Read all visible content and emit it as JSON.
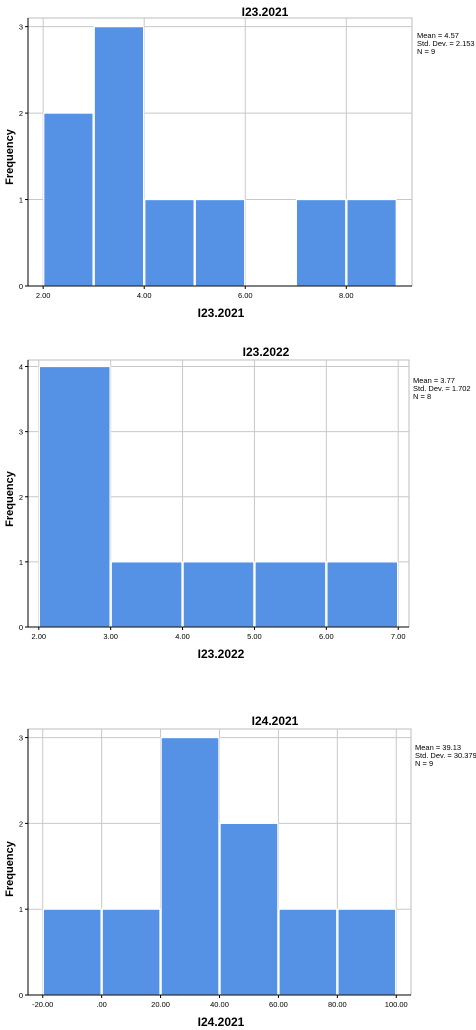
{
  "chart_data": [
    {
      "type": "bar",
      "title": "I23.2021",
      "xlabel": "I23.2021",
      "ylabel": "Frequency",
      "bins": [
        [
          2,
          3
        ],
        [
          3,
          4
        ],
        [
          4,
          5
        ],
        [
          5,
          6
        ],
        [
          6,
          7
        ],
        [
          7,
          8
        ],
        [
          8,
          9
        ]
      ],
      "values": [
        2,
        3,
        1,
        1,
        0,
        1,
        1
      ],
      "xlim": [
        1.7,
        9.3
      ],
      "ylim": [
        0,
        3.1
      ],
      "xticks": [
        {
          "value": 2,
          "label": "2.00"
        },
        {
          "value": 4,
          "label": "4.00"
        },
        {
          "value": 6,
          "label": "6.00"
        },
        {
          "value": 8,
          "label": "8.00"
        }
      ],
      "yticks": [
        {
          "value": 0,
          "label": "0"
        },
        {
          "value": 1,
          "label": "1"
        },
        {
          "value": 2,
          "label": "2"
        },
        {
          "value": 3,
          "label": "3"
        }
      ],
      "stats": [
        "Mean = 4.57",
        "Std. Dev. = 2.153",
        "N = 9"
      ],
      "grid": true,
      "bar_color": "#5592e6"
    },
    {
      "type": "bar",
      "title": "I23.2022",
      "xlabel": "I23.2022",
      "ylabel": "Frequency",
      "bins": [
        [
          2,
          3
        ],
        [
          3,
          4
        ],
        [
          4,
          5
        ],
        [
          5,
          6
        ],
        [
          6,
          7
        ]
      ],
      "values": [
        4,
        1,
        1,
        1,
        1
      ],
      "xlim": [
        1.85,
        7.15
      ],
      "ylim": [
        0,
        4.1
      ],
      "xticks": [
        {
          "value": 2,
          "label": "2.00"
        },
        {
          "value": 3,
          "label": "3.00"
        },
        {
          "value": 4,
          "label": "4.00"
        },
        {
          "value": 5,
          "label": "5.00"
        },
        {
          "value": 6,
          "label": "6.00"
        },
        {
          "value": 7,
          "label": "7.00"
        }
      ],
      "yticks": [
        {
          "value": 0,
          "label": "0"
        },
        {
          "value": 1,
          "label": "1"
        },
        {
          "value": 2,
          "label": "2"
        },
        {
          "value": 3,
          "label": "3"
        },
        {
          "value": 4,
          "label": "4"
        }
      ],
      "stats": [
        "Mean = 3.77",
        "Std. Dev. = 1.702",
        "N = 8"
      ],
      "grid": true,
      "bar_color": "#5592e6"
    },
    {
      "type": "bar",
      "title": "I24.2021",
      "xlabel": "I24.2021",
      "ylabel": "Frequency",
      "bins": [
        [
          -20,
          0
        ],
        [
          0,
          20
        ],
        [
          20,
          40
        ],
        [
          40,
          60
        ],
        [
          60,
          80
        ],
        [
          80,
          100
        ]
      ],
      "values": [
        1,
        1,
        3,
        2,
        1,
        1
      ],
      "xlim": [
        -25,
        105
      ],
      "ylim": [
        0,
        3.1
      ],
      "xticks": [
        {
          "value": -20,
          "label": "-20.00"
        },
        {
          "value": 0,
          "label": ".00"
        },
        {
          "value": 20,
          "label": "20.00"
        },
        {
          "value": 40,
          "label": "40.00"
        },
        {
          "value": 60,
          "label": "60.00"
        },
        {
          "value": 80,
          "label": "80.00"
        },
        {
          "value": 100,
          "label": "100.00"
        }
      ],
      "yticks": [
        {
          "value": 0,
          "label": "0"
        },
        {
          "value": 1,
          "label": "1"
        },
        {
          "value": 2,
          "label": "2"
        },
        {
          "value": 3,
          "label": "3"
        }
      ],
      "stats": [
        "Mean = 39.13",
        "Std. Dev. = 30.379",
        "N = 9"
      ],
      "grid": true,
      "bar_color": "#5592e6"
    }
  ]
}
